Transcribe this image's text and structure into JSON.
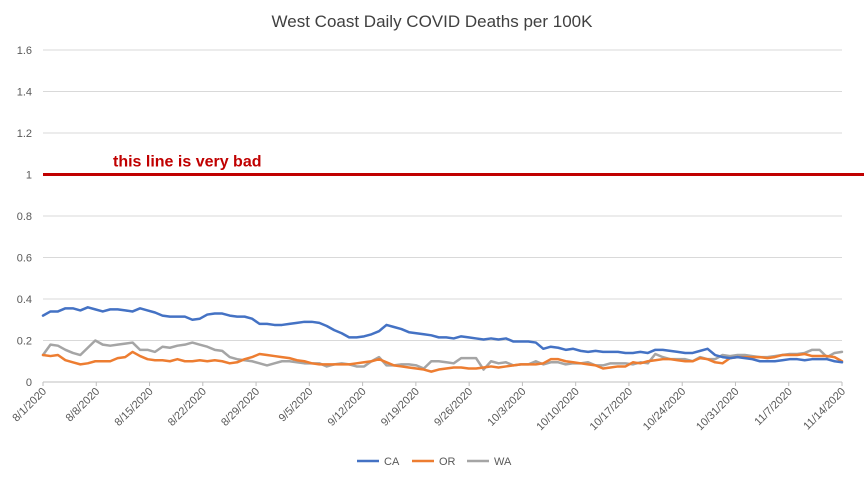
{
  "chart_data": {
    "type": "line",
    "title": "West Coast Daily COVID Deaths per 100K",
    "xlabel": "",
    "ylabel": "",
    "ylim": [
      0,
      1.6
    ],
    "y_ticks": [
      "0",
      "0.2",
      "0.4",
      "0.6",
      "0.8",
      "1",
      "1.2",
      "1.4",
      "1.6"
    ],
    "x_tick_labels": [
      "8/1/2020",
      "8/8/2020",
      "8/15/2020",
      "8/22/2020",
      "8/29/2020",
      "9/5/2020",
      "9/12/2020",
      "9/19/2020",
      "9/26/2020",
      "10/3/2020",
      "10/10/2020",
      "10/17/2020",
      "10/24/2020",
      "10/31/2020",
      "11/7/2020",
      "11/14/2020"
    ],
    "x_start_date": "8/1/2020",
    "x_end_date": "11/14/2020",
    "grid": true,
    "legend_position": "bottom",
    "colors": {
      "CA": "#4472C4",
      "OR": "#ED7D31",
      "WA": "#A5A5A5",
      "reference": "#C00000",
      "grid": "#D9D9D9",
      "axis_text": "#595959",
      "title_text": "#404040"
    },
    "reference_line": {
      "value": 1,
      "label": "this line is very bad"
    },
    "series": [
      {
        "name": "CA",
        "values": [
          0.32,
          0.34,
          0.34,
          0.355,
          0.355,
          0.345,
          0.36,
          0.35,
          0.34,
          0.35,
          0.35,
          0.345,
          0.34,
          0.355,
          0.345,
          0.335,
          0.32,
          0.315,
          0.315,
          0.315,
          0.3,
          0.305,
          0.325,
          0.33,
          0.33,
          0.32,
          0.315,
          0.315,
          0.305,
          0.28,
          0.28,
          0.275,
          0.275,
          0.28,
          0.285,
          0.29,
          0.29,
          0.285,
          0.27,
          0.25,
          0.235,
          0.215,
          0.215,
          0.22,
          0.23,
          0.245,
          0.275,
          0.265,
          0.255,
          0.24,
          0.235,
          0.23,
          0.225,
          0.215,
          0.215,
          0.21,
          0.22,
          0.215,
          0.21,
          0.205,
          0.21,
          0.205,
          0.21,
          0.195,
          0.195,
          0.195,
          0.19,
          0.16,
          0.17,
          0.165,
          0.155,
          0.16,
          0.15,
          0.145,
          0.15,
          0.145,
          0.145,
          0.145,
          0.14,
          0.14,
          0.145,
          0.14,
          0.155,
          0.155,
          0.15,
          0.145,
          0.14,
          0.14,
          0.15,
          0.16,
          0.13,
          0.12,
          0.115,
          0.12,
          0.115,
          0.11,
          0.1,
          0.1,
          0.1,
          0.105,
          0.11,
          0.11,
          0.105,
          0.11,
          0.11,
          0.11,
          0.1,
          0.095
        ]
      },
      {
        "name": "OR",
        "values": [
          0.13,
          0.125,
          0.13,
          0.105,
          0.095,
          0.085,
          0.09,
          0.1,
          0.1,
          0.1,
          0.115,
          0.12,
          0.145,
          0.125,
          0.11,
          0.105,
          0.105,
          0.1,
          0.11,
          0.1,
          0.1,
          0.105,
          0.1,
          0.105,
          0.1,
          0.09,
          0.095,
          0.11,
          0.12,
          0.135,
          0.13,
          0.125,
          0.12,
          0.115,
          0.105,
          0.1,
          0.09,
          0.085,
          0.085,
          0.085,
          0.085,
          0.085,
          0.09,
          0.095,
          0.1,
          0.11,
          0.095,
          0.08,
          0.075,
          0.07,
          0.065,
          0.06,
          0.05,
          0.06,
          0.065,
          0.07,
          0.07,
          0.065,
          0.065,
          0.07,
          0.075,
          0.07,
          0.075,
          0.08,
          0.085,
          0.085,
          0.085,
          0.09,
          0.11,
          0.11,
          0.1,
          0.095,
          0.09,
          0.085,
          0.08,
          0.065,
          0.07,
          0.075,
          0.075,
          0.095,
          0.09,
          0.1,
          0.105,
          0.11,
          0.11,
          0.105,
          0.1,
          0.1,
          0.115,
          0.11,
          0.095,
          0.09,
          0.115,
          0.12,
          0.12,
          0.12,
          0.12,
          0.115,
          0.12,
          0.13,
          0.13,
          0.13,
          0.135,
          0.125,
          0.125,
          0.125,
          0.12,
          0.1
        ]
      },
      {
        "name": "WA",
        "values": [
          0.13,
          0.18,
          0.175,
          0.155,
          0.14,
          0.13,
          0.165,
          0.2,
          0.18,
          0.175,
          0.18,
          0.185,
          0.19,
          0.155,
          0.155,
          0.145,
          0.17,
          0.165,
          0.175,
          0.18,
          0.19,
          0.18,
          0.17,
          0.155,
          0.15,
          0.12,
          0.11,
          0.105,
          0.1,
          0.09,
          0.08,
          0.09,
          0.1,
          0.1,
          0.095,
          0.09,
          0.09,
          0.09,
          0.075,
          0.085,
          0.09,
          0.085,
          0.075,
          0.075,
          0.1,
          0.12,
          0.08,
          0.08,
          0.085,
          0.085,
          0.08,
          0.065,
          0.1,
          0.1,
          0.095,
          0.09,
          0.115,
          0.115,
          0.115,
          0.06,
          0.1,
          0.09,
          0.095,
          0.08,
          0.085,
          0.085,
          0.1,
          0.085,
          0.095,
          0.095,
          0.085,
          0.09,
          0.09,
          0.095,
          0.08,
          0.08,
          0.09,
          0.09,
          0.09,
          0.085,
          0.095,
          0.09,
          0.135,
          0.12,
          0.11,
          0.11,
          0.11,
          0.1,
          0.12,
          0.11,
          0.11,
          0.13,
          0.125,
          0.13,
          0.13,
          0.125,
          0.12,
          0.12,
          0.125,
          0.13,
          0.135,
          0.135,
          0.14,
          0.155,
          0.155,
          0.12,
          0.14,
          0.145
        ]
      }
    ]
  }
}
